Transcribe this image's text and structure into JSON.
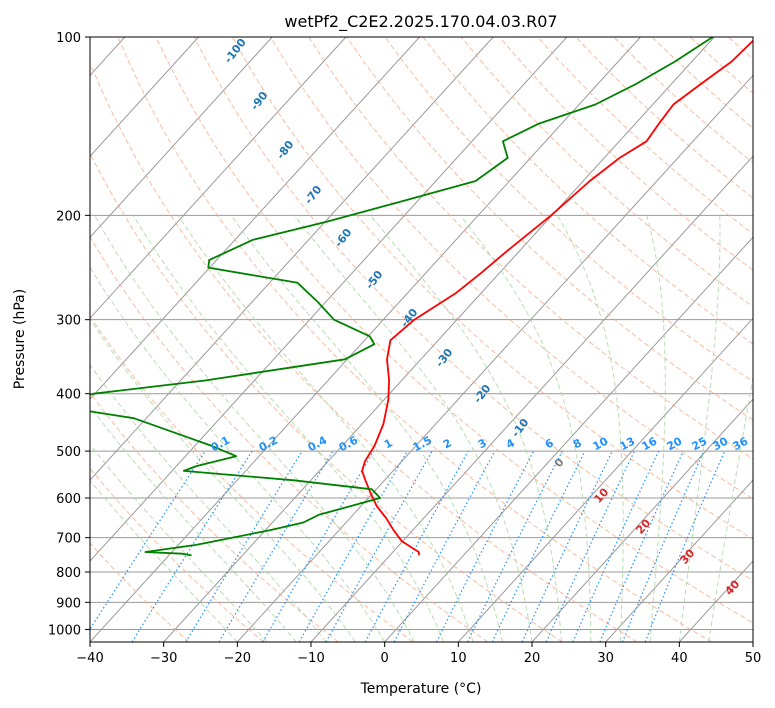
{
  "chart_data": {
    "type": "line",
    "subtype": "skew-t log-p diagram",
    "title": "wetPf2_C2E2.2025.170.04.03.R07",
    "xlabel": "Temperature (°C)",
    "ylabel": "Pressure (hPa)",
    "xlim": [
      -40,
      50
    ],
    "ylim": [
      1050,
      100
    ],
    "y_scale": "log",
    "grid": true,
    "x_ticks": [
      "−40",
      "−30",
      "−20",
      "−10",
      "0",
      "10",
      "20",
      "30",
      "40",
      "50"
    ],
    "y_ticks": [
      100,
      200,
      300,
      400,
      500,
      600,
      700,
      800,
      900,
      1000
    ],
    "y_tick_labels": [
      "100",
      "200",
      "300",
      "400",
      "500",
      "600",
      "700",
      "800",
      "900",
      "1000"
    ],
    "series": [
      {
        "color": "#ff0000",
        "role": "temperature",
        "points": [
          [
            -24.2,
            100
          ],
          [
            -24.6,
            110
          ],
          [
            -26.0,
            120
          ],
          [
            -27.2,
            130
          ],
          [
            -26.8,
            140
          ],
          [
            -26.3,
            150
          ],
          [
            -27.9,
            160
          ],
          [
            -29.1,
            175
          ],
          [
            -30.1,
            200
          ],
          [
            -31.7,
            230
          ],
          [
            -32.5,
            250
          ],
          [
            -33.4,
            270
          ],
          [
            -35.8,
            300
          ],
          [
            -36.5,
            325
          ],
          [
            -34.6,
            350
          ],
          [
            -31.7,
            380
          ],
          [
            -29.4,
            410
          ],
          [
            -27.1,
            450
          ],
          [
            -25.6,
            490
          ],
          [
            -25.0,
            520
          ],
          [
            -24.2,
            540
          ],
          [
            -22.6,
            560
          ],
          [
            -20.2,
            590
          ],
          [
            -17.8,
            620
          ],
          [
            -15.0,
            650
          ],
          [
            -12.6,
            680
          ],
          [
            -10.1,
            710
          ],
          [
            -6.5,
            740
          ],
          [
            -6.0,
            750
          ]
        ]
      },
      {
        "color": "#008000",
        "role": "dewpoint",
        "points": [
          [
            -30.2,
            100
          ],
          [
            -32.3,
            110
          ],
          [
            -34.8,
            120
          ],
          [
            -37.8,
            130
          ],
          [
            -43.1,
            140
          ],
          [
            -45.8,
            150
          ],
          [
            -43.1,
            160
          ],
          [
            -44.6,
            175
          ],
          [
            -52.4,
            190
          ],
          [
            -59.8,
            205
          ],
          [
            -67.6,
            220
          ],
          [
            -71.0,
            238
          ],
          [
            -70.2,
            245
          ],
          [
            -56.2,
            260
          ],
          [
            -51.1,
            280
          ],
          [
            -46.7,
            300
          ],
          [
            -39.8,
            320
          ],
          [
            -38.2,
            330
          ],
          [
            -40.3,
            350
          ],
          [
            -56.7,
            380
          ],
          [
            -70.2,
            400
          ],
          [
            -73.6,
            420
          ],
          [
            -61.7,
            440
          ],
          [
            -53.1,
            470
          ],
          [
            -47.7,
            490
          ],
          [
            -43.1,
            510
          ],
          [
            -47.3,
            530
          ],
          [
            -48.4,
            540
          ],
          [
            -32.3,
            560
          ],
          [
            -20.6,
            580
          ],
          [
            -18.4,
            600
          ],
          [
            -21.5,
            620
          ],
          [
            -24.6,
            640
          ],
          [
            -25.8,
            660
          ],
          [
            -29.4,
            680
          ],
          [
            -33.6,
            700
          ],
          [
            -37.6,
            720
          ],
          [
            -43.6,
            740
          ],
          [
            -38.4,
            745
          ],
          [
            -36.9,
            750
          ]
        ]
      }
    ],
    "dry_adiabat_labels": [
      "-100",
      "-90",
      "-80",
      "-70",
      "-60",
      "-50",
      "-40",
      "-30",
      "-20",
      "-10",
      "0"
    ],
    "moist_adiabat_labels": [
      "10",
      "20",
      "30",
      "40"
    ],
    "mixing_ratio_labels": [
      "0.1",
      "0.2",
      "0.4",
      "0.6",
      "1",
      "1.5",
      "2",
      "3",
      "4",
      "6",
      "8",
      "10",
      "13",
      "16",
      "20",
      "25",
      "30",
      "36"
    ],
    "colors": {
      "temperature": "#ff0000",
      "dewpoint": "#008000",
      "isotherm": "#999999",
      "dry_adiabat": "#f4a582",
      "moist_adiabat": "#a6d4a0",
      "mixing_ratio": "#1e90ff"
    }
  }
}
